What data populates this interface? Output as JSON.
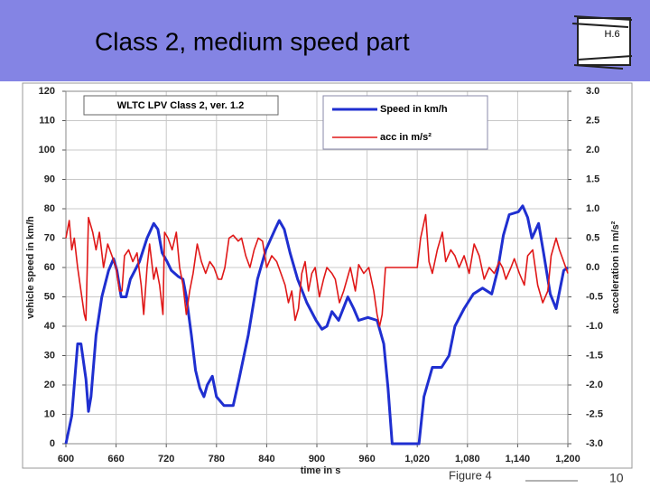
{
  "slide": {
    "title": "Class 2, medium speed part",
    "logo_text": "H.6",
    "figure_label": "Figure 4",
    "page_number": "10"
  },
  "chart_data": {
    "type": "line",
    "title": "WLTC LPV Class 2, ver. 1.2",
    "x_label": "time in s",
    "y_label": "vehicle speed in km/h",
    "y2_label": "acceleration in m/s²",
    "xlim": [
      600,
      1200
    ],
    "xticks": [
      600,
      660,
      720,
      780,
      840,
      900,
      960,
      {
        "value": 1020,
        "label": "1,020"
      },
      {
        "value": 1080,
        "label": "1,080"
      },
      {
        "value": 1140,
        "label": "1,140"
      },
      {
        "value": 1200,
        "label": "1,200"
      }
    ],
    "ylim": [
      0,
      120
    ],
    "yticks": [
      0,
      10,
      20,
      30,
      40,
      50,
      60,
      70,
      80,
      90,
      100,
      110,
      120
    ],
    "y2lim": [
      -3,
      3
    ],
    "y2ticks": [
      {
        "value": -3,
        "label": "-3.0"
      },
      -2.5,
      {
        "value": -2,
        "label": "-2.0"
      },
      -1.5,
      {
        "value": -1,
        "label": "-1.0"
      },
      -0.5,
      {
        "value": 0,
        "label": "0.0"
      },
      0.5,
      {
        "value": 1,
        "label": "1.0"
      },
      1.5,
      {
        "value": 2,
        "label": "2.0"
      },
      2.5,
      {
        "value": 3,
        "label": "3.0"
      }
    ],
    "grid": true,
    "legend": "upper-center",
    "series": [
      {
        "name": "Speed in km/h",
        "color": "#1f2fd0",
        "x": [
          600,
          607,
          614,
          618,
          624,
          627,
          630,
          636,
          643,
          651,
          657,
          661,
          666,
          672,
          677,
          688,
          697,
          705,
          710,
          715,
          721,
          726,
          734,
          740,
          744,
          750,
          755,
          760,
          765,
          769,
          775,
          780,
          789,
          800,
          807,
          818,
          829,
          839,
          850,
          855,
          861,
          868,
          877,
          888,
          899,
          906,
          912,
          918,
          926,
          937,
          944,
          950,
          961,
          972,
          980,
          985,
          990,
          1022,
          1028,
          1038,
          1049,
          1058,
          1065,
          1076,
          1087,
          1098,
          1109,
          1116,
          1123,
          1130,
          1141,
          1146,
          1152,
          1157,
          1165,
          1171,
          1179,
          1186,
          1195,
          1200
        ],
        "values": [
          0,
          9.5,
          34,
          34,
          22,
          11,
          16,
          37,
          50,
          59,
          63,
          59,
          50,
          50,
          56,
          62,
          70,
          75,
          73,
          65,
          62,
          59,
          57,
          56,
          50,
          37,
          25,
          19,
          16,
          20,
          23,
          16,
          13,
          13,
          22,
          37,
          56,
          66,
          73,
          76,
          73,
          65,
          56,
          48,
          42,
          39,
          40,
          45,
          42,
          50,
          46,
          42,
          43,
          42,
          34,
          19,
          0,
          0,
          16,
          26,
          26,
          30,
          40,
          46,
          51,
          53,
          51,
          59,
          71,
          78,
          79,
          81,
          77,
          70,
          75,
          65,
          51,
          46,
          59,
          60
        ]
      },
      {
        "name": "acc in m/s²",
        "color": "#e01818",
        "axis": "y2",
        "x": [
          600,
          604,
          607,
          610,
          614,
          618,
          622,
          624,
          627,
          632,
          636,
          640,
          645,
          650,
          655,
          660,
          664,
          667,
          670,
          675,
          680,
          685,
          690,
          693,
          697,
          700,
          705,
          708,
          712,
          716,
          718,
          722,
          727,
          732,
          736,
          740,
          744,
          748,
          752,
          757,
          762,
          767,
          772,
          777,
          782,
          786,
          790,
          795,
          800,
          806,
          810,
          815,
          820,
          825,
          830,
          835,
          840,
          846,
          852,
          857,
          862,
          866,
          870,
          874,
          878,
          882,
          886,
          890,
          894,
          898,
          903,
          908,
          912,
          918,
          922,
          927,
          932,
          936,
          940,
          946,
          950,
          956,
          962,
          968,
          972,
          975,
          978,
          982,
          990,
          1020,
          1024,
          1030,
          1034,
          1038,
          1044,
          1050,
          1054,
          1060,
          1065,
          1070,
          1076,
          1082,
          1088,
          1094,
          1100,
          1106,
          1112,
          1118,
          1122,
          1126,
          1132,
          1136,
          1142,
          1148,
          1152,
          1158,
          1164,
          1170,
          1176,
          1180,
          1186,
          1190,
          1195,
          1200
        ],
        "values": [
          0.5,
          0.8,
          0.3,
          0.5,
          0.0,
          -0.4,
          -0.8,
          -0.9,
          0.85,
          0.6,
          0.3,
          0.6,
          0.0,
          0.4,
          0.2,
          0.0,
          -0.4,
          -0.4,
          0.2,
          0.3,
          0.1,
          0.25,
          -0.3,
          -0.8,
          0.0,
          0.4,
          -0.2,
          0.0,
          -0.3,
          -0.8,
          0.6,
          0.5,
          0.3,
          0.6,
          0.0,
          -0.3,
          -0.8,
          -0.4,
          -0.1,
          0.4,
          0.1,
          -0.1,
          0.1,
          0.0,
          -0.2,
          -0.2,
          0.0,
          0.5,
          0.55,
          0.45,
          0.5,
          0.2,
          0.0,
          0.3,
          0.5,
          0.45,
          0.0,
          0.2,
          0.1,
          -0.1,
          -0.3,
          -0.6,
          -0.4,
          -0.9,
          -0.7,
          -0.1,
          0.1,
          -0.4,
          -0.1,
          0.0,
          -0.5,
          -0.2,
          0.0,
          -0.1,
          -0.2,
          -0.6,
          -0.4,
          -0.2,
          0.0,
          -0.4,
          0.05,
          -0.1,
          0.0,
          -0.4,
          -0.8,
          -1.0,
          -0.8,
          0.0,
          0.0,
          0.0,
          0.5,
          0.9,
          0.1,
          -0.1,
          0.3,
          0.6,
          0.1,
          0.3,
          0.2,
          0.0,
          0.2,
          -0.1,
          0.4,
          0.2,
          -0.2,
          0.0,
          -0.1,
          0.1,
          0.0,
          -0.2,
          0.0,
          0.15,
          -0.1,
          -0.3,
          0.2,
          0.3,
          -0.3,
          -0.6,
          -0.4,
          0.2,
          0.5,
          0.3,
          0.1,
          -0.1
        ]
      }
    ]
  }
}
